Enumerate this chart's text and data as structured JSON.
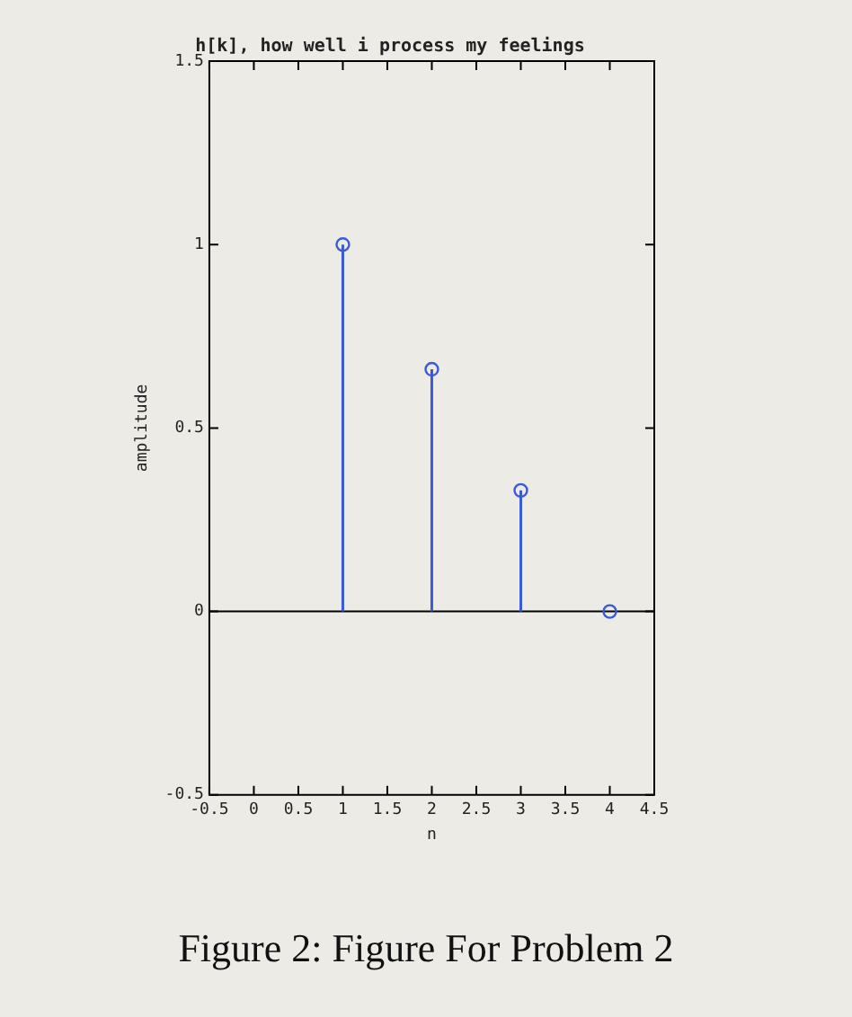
{
  "chart_data": {
    "type": "lollipop",
    "title": "h[k], how well i process my feelings",
    "xlabel": "n",
    "ylabel": "amplitude",
    "x": [
      1,
      2,
      3,
      4
    ],
    "series": [
      {
        "color": "#3b5bd6",
        "values": [
          1,
          0.66,
          0.33,
          0
        ]
      }
    ],
    "xlim": [
      -0.5,
      4.5
    ],
    "xticks": [
      -0.5,
      0,
      0.5,
      1,
      1.5,
      2,
      2.5,
      3,
      3.5,
      4,
      4.5
    ],
    "ylim": [
      -0.5,
      1.5
    ],
    "yticks": [
      -0.5,
      0,
      0.5,
      1,
      1.5
    ],
    "ref_lines": [
      {
        "axis": "y",
        "value": 0,
        "color": "#000000"
      }
    ],
    "marker": "circle",
    "grid": false,
    "legend": false,
    "annotations": [
      "Figure 2: Figure For Problem 2"
    ]
  }
}
